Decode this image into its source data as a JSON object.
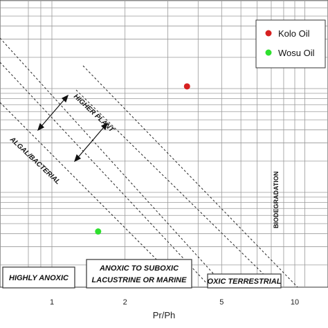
{
  "chart_data": {
    "type": "scatter",
    "xlabel": "Pr/Ph",
    "x_scale": "log",
    "y_scale": "log",
    "x_ticks": [
      1,
      2,
      5,
      10
    ],
    "series": [
      {
        "name": "Kolo Oil",
        "color": "#d62020",
        "points": [
          {
            "x": 3.6,
            "y": 10.5
          }
        ]
      },
      {
        "name": "Wosu Oil",
        "color": "#2ee02e",
        "points": [
          {
            "x": 1.55,
            "y": 0.42
          }
        ]
      }
    ],
    "legend": {
      "placement": "top-right"
    },
    "zones": [
      "HIGHLY ANOXIC",
      "ANOXIC TO SUBOXIC",
      "LACUSTRINE OR MARINE",
      "OXIC TERRESTRIAL"
    ],
    "annotations": [
      "HIGHER PLANT",
      "ALGAL/BACTERIAL",
      "BIODEGRADATION"
    ],
    "grid": true
  }
}
